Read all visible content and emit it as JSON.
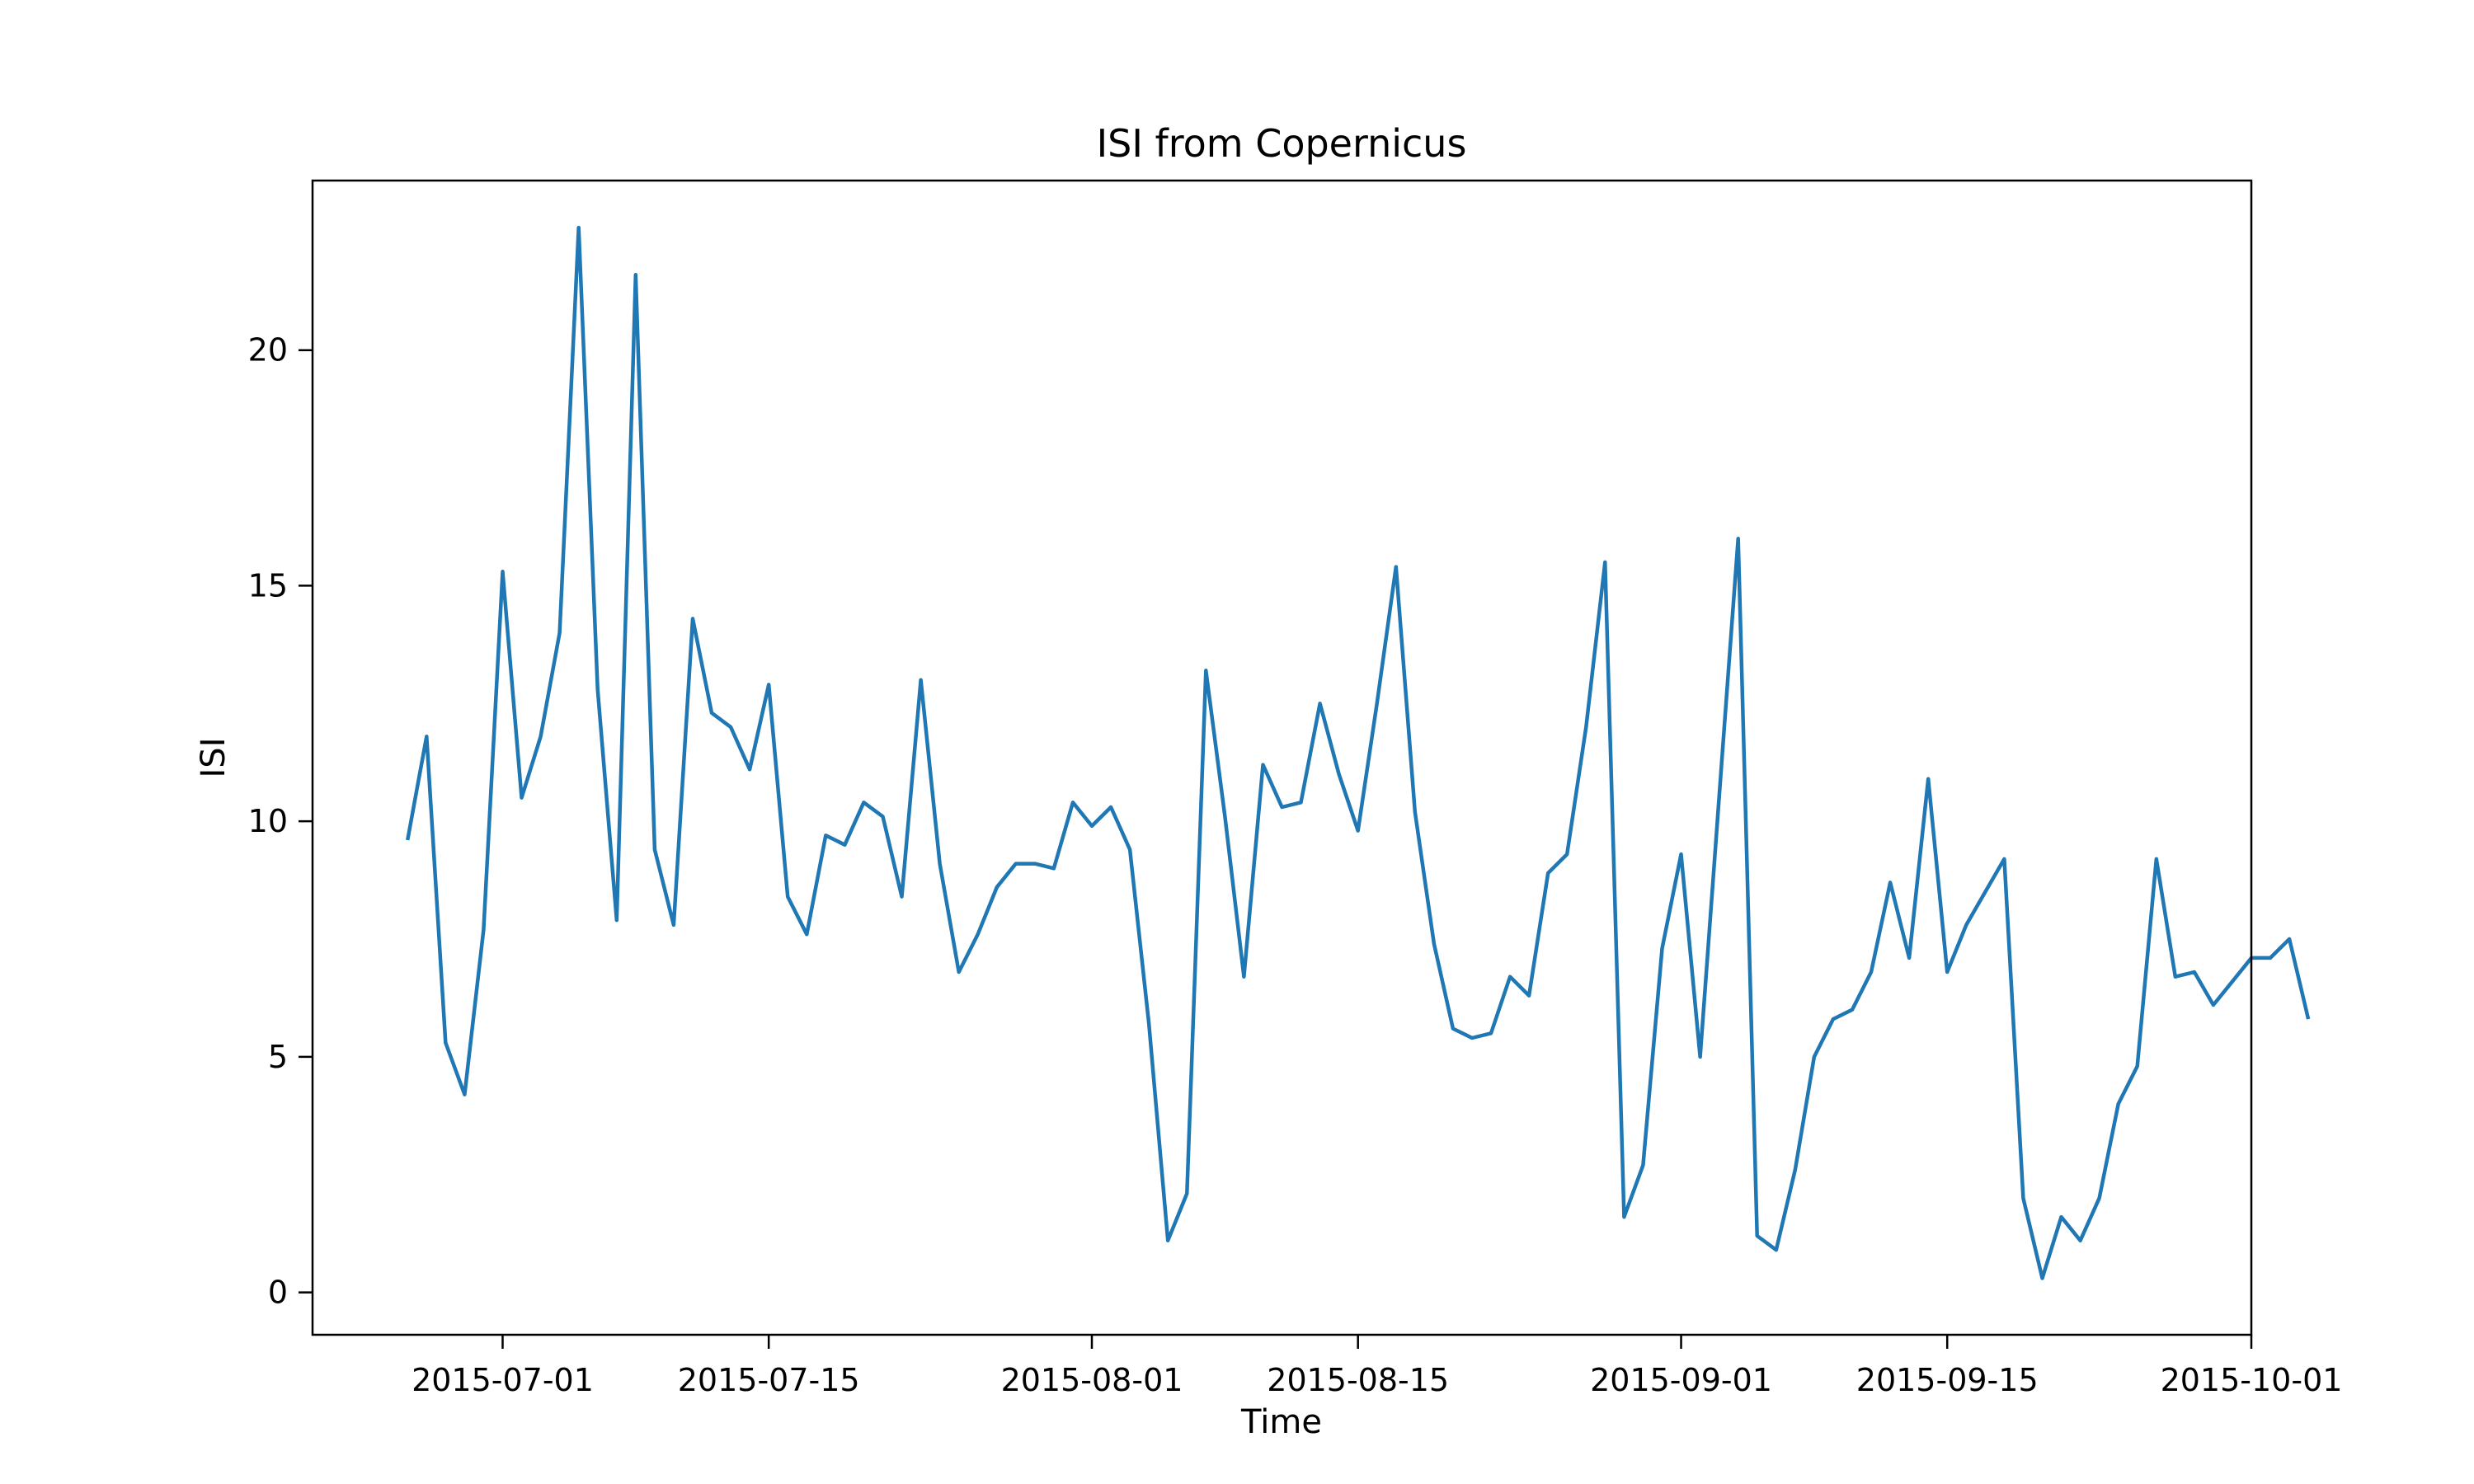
{
  "chart_data": {
    "type": "line",
    "title": "ISI from Copernicus",
    "xlabel": "Time",
    "ylabel": "ISI",
    "x_start": "2015-06-26",
    "x_end": "2015-09-26",
    "xlim": [
      "2015-06-21",
      "2015-10-01"
    ],
    "ylim": [
      -0.9,
      23.6
    ],
    "x_ticks": [
      {
        "date": "2015-07-01",
        "label": "2015-07-01"
      },
      {
        "date": "2015-07-15",
        "label": "2015-07-15"
      },
      {
        "date": "2015-08-01",
        "label": "2015-08-01"
      },
      {
        "date": "2015-08-15",
        "label": "2015-08-15"
      },
      {
        "date": "2015-09-01",
        "label": "2015-09-01"
      },
      {
        "date": "2015-09-15",
        "label": "2015-09-15"
      },
      {
        "date": "2015-10-01",
        "label": "2015-10-01"
      }
    ],
    "y_ticks": [
      {
        "value": 0,
        "label": "0"
      },
      {
        "value": 5,
        "label": "5"
      },
      {
        "value": 10,
        "label": "10"
      },
      {
        "value": 15,
        "label": "15"
      },
      {
        "value": 20,
        "label": "20"
      }
    ],
    "grid": false,
    "series": [
      {
        "color": "#1f77b4",
        "values": [
          9.6,
          11.8,
          5.3,
          4.2,
          7.7,
          15.3,
          10.5,
          11.8,
          14.0,
          22.6,
          12.8,
          7.9,
          21.6,
          9.4,
          7.8,
          14.3,
          12.3,
          12.0,
          11.1,
          12.9,
          8.4,
          7.6,
          9.7,
          9.5,
          10.4,
          10.1,
          8.4,
          13.0,
          9.1,
          6.8,
          7.6,
          8.6,
          9.1,
          9.1,
          9.0,
          10.4,
          9.9,
          10.3,
          9.4,
          5.7,
          1.1,
          2.1,
          13.2,
          10.1,
          6.7,
          11.2,
          10.3,
          10.4,
          12.5,
          11.0,
          9.8,
          12.5,
          15.4,
          10.2,
          7.4,
          5.6,
          5.4,
          5.5,
          6.7,
          6.3,
          8.9,
          9.3,
          12.0,
          15.5,
          1.6,
          2.7,
          7.3,
          9.3,
          5.0,
          10.5,
          16.0,
          1.2,
          0.9,
          2.6,
          5.0,
          5.8,
          6.0,
          6.8,
          8.7,
          7.1,
          10.9,
          6.8,
          7.8,
          8.5,
          9.2,
          2.0,
          0.3,
          1.6,
          1.1,
          2.0,
          4.0,
          4.8,
          9.2,
          6.7,
          6.8,
          6.1,
          6.6,
          7.1,
          7.1,
          7.5,
          5.8
        ]
      }
    ]
  }
}
